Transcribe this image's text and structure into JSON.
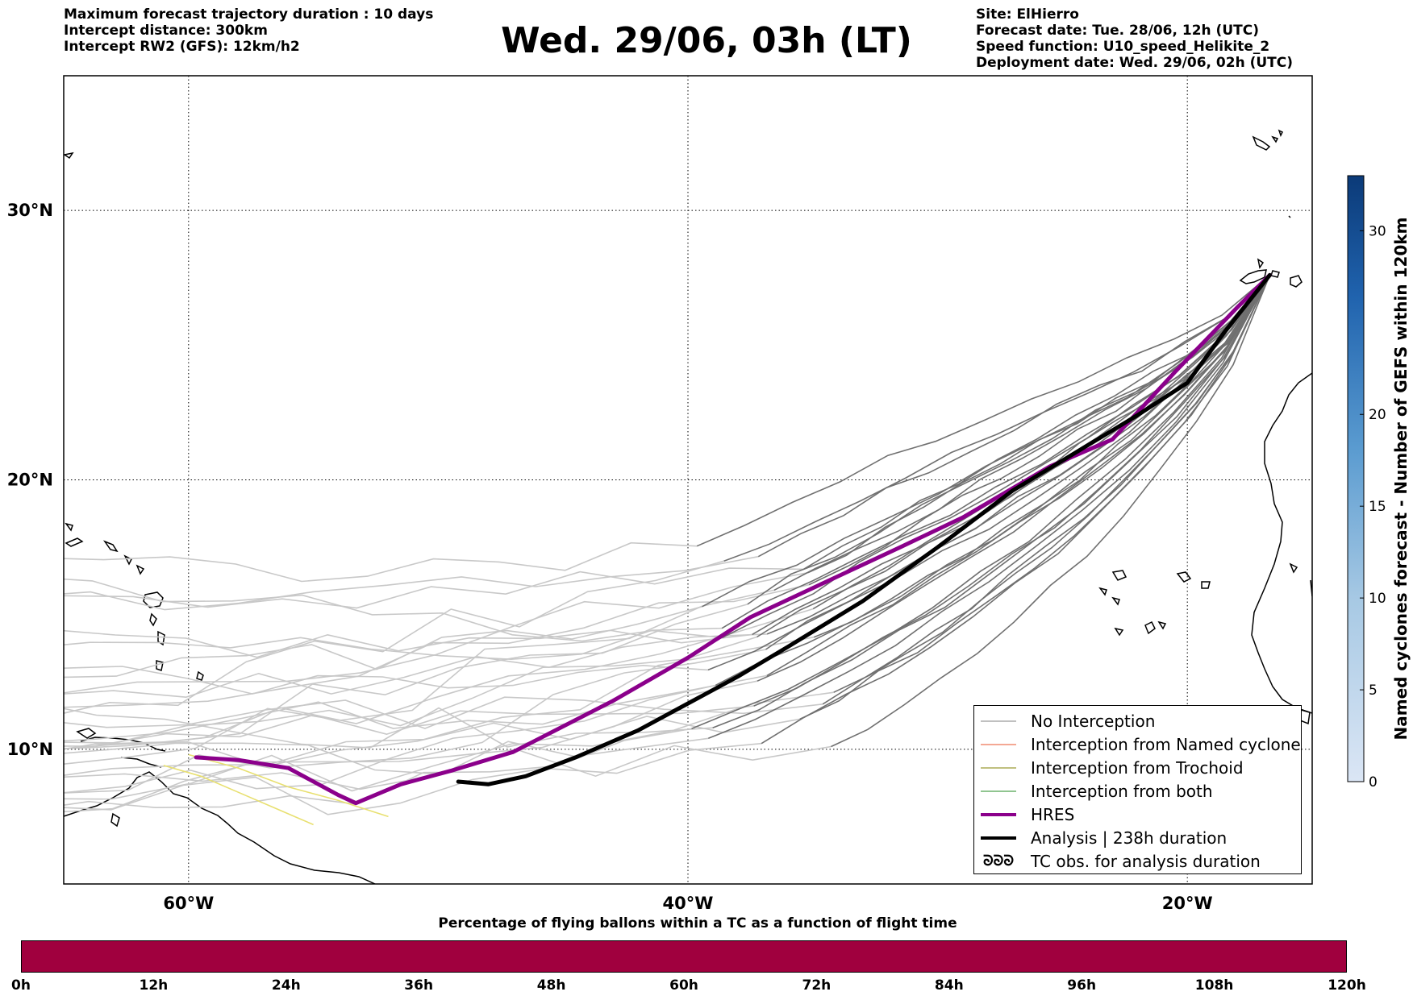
{
  "header": {
    "left_lines": [
      "Maximum forecast trajectory duration : 10 days",
      "Intercept distance: 300km",
      "Intercept RW2 (GFS):  12km/h2"
    ],
    "title": "Wed. 29/06, 03h (LT)",
    "right_lines": [
      "Site: ElHierro",
      "Forecast date: Tue. 28/06, 12h (UTC)",
      "Speed function: U10_speed_Helikite_2",
      "Deployment date: Wed. 29/06, 02h (UTC)"
    ]
  },
  "map": {
    "lon_range": [
      -65,
      -15
    ],
    "lat_range": [
      5,
      35
    ],
    "lon_ticks": [
      {
        "value": -60,
        "label": "60°W"
      },
      {
        "value": -40,
        "label": "40°W"
      },
      {
        "value": -20,
        "label": "20°W"
      }
    ],
    "lat_ticks": [
      {
        "value": 30,
        "label": "30°N"
      },
      {
        "value": 20,
        "label": "20°N"
      },
      {
        "value": 10,
        "label": "10°N"
      }
    ],
    "grid": "dotted",
    "hres_track": [
      [
        -16.7,
        27.6
      ],
      [
        -18,
        26.4
      ],
      [
        -20.5,
        24
      ],
      [
        -23,
        21.5
      ],
      [
        -25.5,
        20.5
      ],
      [
        -29,
        18.6
      ],
      [
        -31.5,
        17.5
      ],
      [
        -34.5,
        16.2
      ],
      [
        -37.5,
        14.9
      ],
      [
        -40,
        13.4
      ],
      [
        -43,
        11.8
      ],
      [
        -47,
        9.9
      ],
      [
        -49.5,
        9.2
      ],
      [
        -51.5,
        8.7
      ],
      [
        -53.3,
        8.0
      ],
      [
        -54,
        8.3
      ],
      [
        -56,
        9.3
      ],
      [
        -58,
        9.6
      ],
      [
        -59.7,
        9.7
      ]
    ],
    "analysis_track": [
      [
        -16.7,
        27.6
      ],
      [
        -18.5,
        25.5
      ],
      [
        -20,
        23.6
      ],
      [
        -22,
        22.4
      ],
      [
        -24.5,
        21
      ],
      [
        -27,
        19.6
      ],
      [
        -30,
        17.5
      ],
      [
        -33,
        15.5
      ],
      [
        -36,
        13.8
      ],
      [
        -38,
        12.7
      ],
      [
        -40,
        11.7
      ],
      [
        -42,
        10.7
      ],
      [
        -44.5,
        9.7
      ],
      [
        -46.5,
        9.0
      ],
      [
        -48,
        8.7
      ],
      [
        -49.2,
        8.8
      ]
    ]
  },
  "legend": {
    "items": [
      {
        "label": "No Interception",
        "color": "#808080",
        "style": "thin"
      },
      {
        "label": "Interception from Named cyclone",
        "color": "#e8502a",
        "style": "thin"
      },
      {
        "label": "Interception from Trochoid",
        "color": "#808000",
        "style": "thin"
      },
      {
        "label": "Interception from both",
        "color": "#228b22",
        "style": "thin"
      },
      {
        "label": "HRES",
        "color": "#8b008b",
        "style": "thick"
      },
      {
        "label": "Analysis | 238h duration",
        "color": "#000000",
        "style": "thick"
      },
      {
        "label": "TC obs. for analysis duration",
        "color": "#000000",
        "style": "symbol",
        "symbol": "ᘐᘐᘐ"
      }
    ]
  },
  "colorbar_right": {
    "label": "Named cyclones forecast - Number of GEFS within 120km",
    "range": [
      0,
      33
    ],
    "ticks": [
      "0",
      "5",
      "10",
      "15",
      "20",
      "30"
    ]
  },
  "colorbar_bottom": {
    "title": "Percentage of flying ballons within a TC as a function of flight time",
    "ticks": [
      "0h",
      "12h",
      "24h",
      "36h",
      "48h",
      "60h",
      "72h",
      "84h",
      "96h",
      "108h",
      "120h"
    ],
    "color": "#a0003e"
  }
}
